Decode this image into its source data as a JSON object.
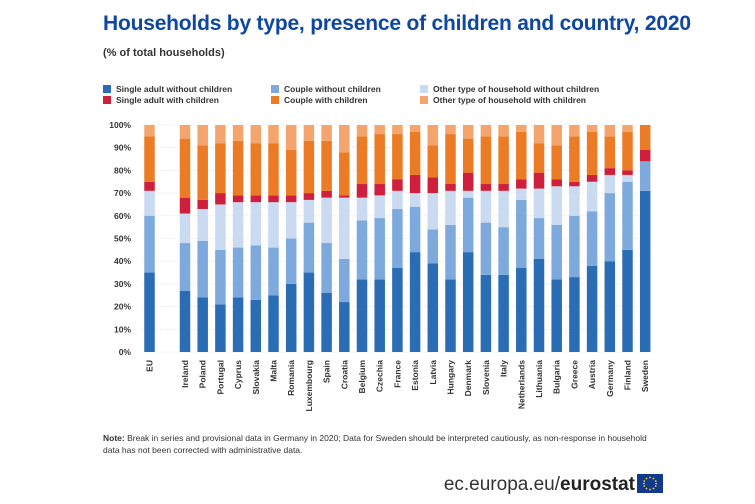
{
  "header": {
    "title": "Households by type, presence of children and country, 2020",
    "subtitle": "(% of total households)"
  },
  "note_label": "Note:",
  "note_text": " Break in series and provisional data in Germany in 2020; Data for Sweden should be interpreted cautiously, as non-response in household data has not been corrected with administrative data.",
  "footer": {
    "url": "ec.europa.eu/",
    "brand": "eurostat"
  },
  "colors": {
    "single_no_children": "#2a6db5",
    "couple_no_children": "#7ea9dc",
    "other_no_children": "#c9daf1",
    "single_with_children": "#d01f3c",
    "couple_with_children": "#ec7b25",
    "other_with_children": "#f4a56e"
  },
  "chart_data": {
    "type": "bar",
    "stacked": true,
    "title": "Households by type, presence of children and country, 2020",
    "ylabel": "% of total households",
    "ylim": [
      0,
      100
    ],
    "yticks": [
      "0%",
      "10%",
      "20%",
      "30%",
      "40%",
      "50%",
      "60%",
      "70%",
      "80%",
      "90%",
      "100%"
    ],
    "categories": [
      "EU",
      "Ireland",
      "Poland",
      "Portugal",
      "Cyprus",
      "Slovakia",
      "Malta",
      "Romania",
      "Luxembourg",
      "Spain",
      "Croatia",
      "Belgium",
      "Czechia",
      "France",
      "Estonia",
      "Latvia",
      "Hungary",
      "Denmark",
      "Slovenia",
      "Italy",
      "Netherlands",
      "Lithuania",
      "Bulgaria",
      "Greece",
      "Austria",
      "Germany",
      "Finland",
      "Sweden"
    ],
    "series": [
      {
        "name": "Single adult without children",
        "key": "single_no_children",
        "values": [
          35,
          27,
          24,
          21,
          24,
          23,
          25,
          30,
          35,
          26,
          22,
          32,
          32,
          37,
          44,
          39,
          32,
          44,
          34,
          34,
          37,
          41,
          32,
          33,
          38,
          40,
          45,
          71
        ]
      },
      {
        "name": "Couple without children",
        "key": "couple_no_children",
        "values": [
          25,
          21,
          25,
          24,
          22,
          24,
          21,
          20,
          22,
          22,
          19,
          26,
          27,
          26,
          20,
          15,
          24,
          24,
          23,
          21,
          30,
          18,
          24,
          27,
          24,
          30,
          30,
          13
        ]
      },
      {
        "name": "Other type of household without children",
        "key": "other_no_children",
        "values": [
          11,
          13,
          14,
          20,
          20,
          19,
          20,
          16,
          10,
          20,
          27,
          10,
          10,
          8,
          6,
          16,
          15,
          3,
          14,
          16,
          5,
          13,
          17,
          13,
          13,
          8,
          3,
          0
        ]
      },
      {
        "name": "Single adult with children",
        "key": "single_with_children",
        "values": [
          4,
          7,
          4,
          5,
          3,
          3,
          3,
          3,
          3,
          3,
          1,
          6,
          5,
          5,
          8,
          7,
          3,
          8,
          3,
          3,
          4,
          7,
          3,
          2,
          3,
          3,
          2,
          5
        ]
      },
      {
        "name": "Couple with children",
        "key": "couple_with_children",
        "values": [
          20,
          26,
          24,
          22,
          24,
          23,
          23,
          20,
          23,
          22,
          19,
          21,
          22,
          20,
          19,
          14,
          22,
          15,
          21,
          21,
          21,
          13,
          15,
          20,
          19,
          14,
          17,
          11
        ]
      },
      {
        "name": "Other type of household with children",
        "key": "other_with_children",
        "values": [
          5,
          6,
          9,
          8,
          7,
          8,
          8,
          11,
          7,
          7,
          12,
          5,
          4,
          4,
          3,
          9,
          4,
          6,
          5,
          5,
          3,
          8,
          9,
          5,
          3,
          5,
          3,
          0
        ]
      }
    ]
  }
}
